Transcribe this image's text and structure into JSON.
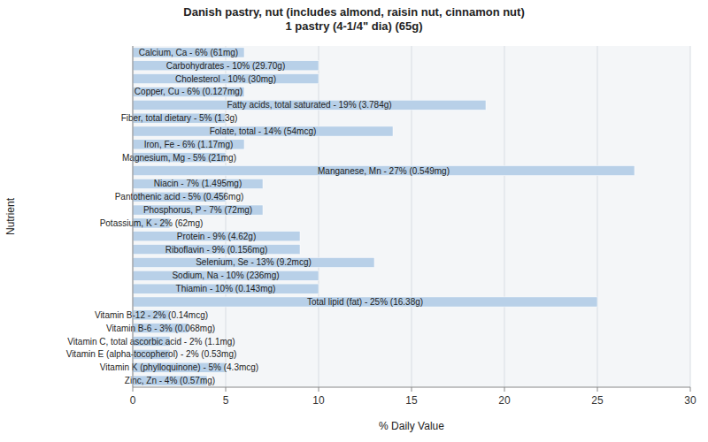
{
  "chart_data": {
    "type": "bar",
    "orientation": "horizontal",
    "title": "Danish pastry, nut (includes almond, raisin nut, cinnamon nut)\n1 pastry (4-1/4\" dia) (65g)",
    "x_label": "% Daily Value",
    "y_label": "Nutrient",
    "categories": [
      "Calcium, Ca - 6% (61mg)",
      "Carbohydrates - 10% (29.70g)",
      "Cholesterol - 10% (30mg)",
      "Copper, Cu - 6% (0.127mg)",
      "Fatty acids, total saturated - 19% (3.784g)",
      "Fiber, total dietary - 5% (1.3g)",
      "Folate, total - 14% (54mcg)",
      "Iron, Fe - 6% (1.17mg)",
      "Magnesium, Mg - 5% (21mg)",
      "Manganese, Mn - 27% (0.549mg)",
      "Niacin - 7% (1.495mg)",
      "Pantothenic acid - 5% (0.456mg)",
      "Phosphorus, P - 7% (72mg)",
      "Potassium, K - 2% (62mg)",
      "Protein - 9% (4.62g)",
      "Riboflavin - 9% (0.156mg)",
      "Selenium, Se - 13% (9.2mcg)",
      "Sodium, Na - 10% (236mg)",
      "Thiamin - 10% (0.143mg)",
      "Total lipid (fat) - 25% (16.38g)",
      "Vitamin B-12 - 2% (0.14mcg)",
      "Vitamin B-6 - 3% (0.068mg)",
      "Vitamin C, total ascorbic acid - 2% (1.1mg)",
      "Vitamin E (alpha-tocopherol) - 2% (0.53mg)",
      "Vitamin K (phylloquinone) - 5% (4.3mcg)",
      "Zinc, Zn - 4% (0.57mg)"
    ],
    "values": [
      6,
      10,
      10,
      6,
      19,
      5,
      14,
      6,
      5,
      27,
      7,
      5,
      7,
      2,
      9,
      9,
      13,
      10,
      10,
      25,
      2,
      3,
      2,
      2,
      5,
      4
    ],
    "color": "#b8d0e8",
    "xlim": [
      0,
      30
    ],
    "xticks": [
      0,
      5,
      10,
      15,
      20,
      25,
      30
    ],
    "grid": true,
    "tick_labels": "x"
  }
}
